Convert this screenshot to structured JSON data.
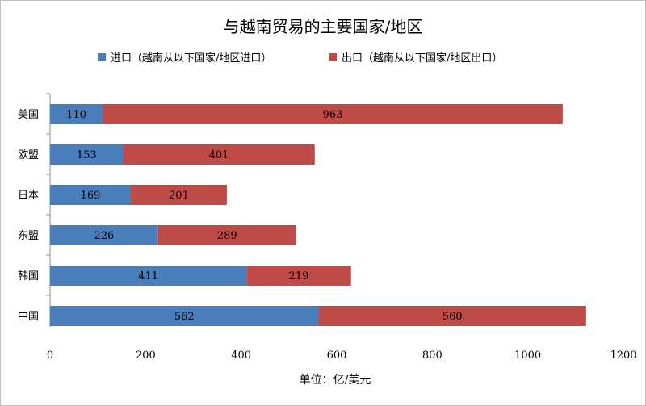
{
  "chart_data": {
    "type": "bar",
    "orientation": "horizontal",
    "stacked": true,
    "title": "与越南贸易的主要国家/地区",
    "xlabel": "单位：亿/美元",
    "ylabel": "",
    "xlim": [
      0,
      1200
    ],
    "xticks": [
      "0",
      "200",
      "400",
      "600",
      "800",
      "1000",
      "1200"
    ],
    "categories": [
      "美国",
      "欧盟",
      "日本",
      "东盟",
      "韩国",
      "中国"
    ],
    "series": [
      {
        "name": "进口（越南从以下国家/地区进口）",
        "color": "#4a7ebb",
        "values": [
          110,
          153,
          169,
          226,
          411,
          562
        ]
      },
      {
        "name": "出口（越南从以下国家/地区出口）",
        "color": "#be4b48",
        "values": [
          963,
          401,
          201,
          289,
          219,
          560
        ]
      }
    ],
    "legend_position": "top",
    "grid": false,
    "data_labels": true
  }
}
